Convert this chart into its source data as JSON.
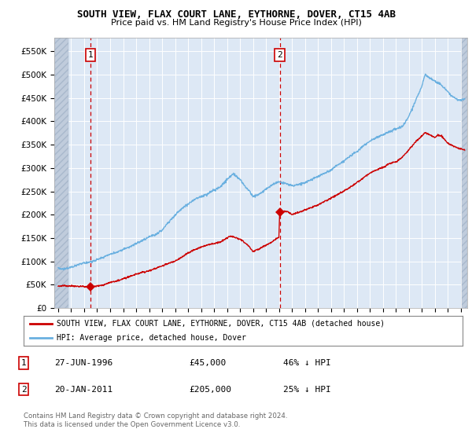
{
  "title": "SOUTH VIEW, FLAX COURT LANE, EYTHORNE, DOVER, CT15 4AB",
  "subtitle": "Price paid vs. HM Land Registry's House Price Index (HPI)",
  "ylim": [
    0,
    580000
  ],
  "yticks": [
    0,
    50000,
    100000,
    150000,
    200000,
    250000,
    300000,
    350000,
    400000,
    450000,
    500000,
    550000
  ],
  "ytick_labels": [
    "£0",
    "£50K",
    "£100K",
    "£150K",
    "£200K",
    "£250K",
    "£300K",
    "£350K",
    "£400K",
    "£450K",
    "£500K",
    "£550K"
  ],
  "xlim_start": 1993.7,
  "xlim_end": 2025.5,
  "sale1_date": 1996.49,
  "sale1_price": 45000,
  "sale2_date": 2011.055,
  "sale2_price": 205000,
  "property_color": "#cc0000",
  "hpi_color": "#6ab0e0",
  "legend_property": "SOUTH VIEW, FLAX COURT LANE, EYTHORNE, DOVER, CT15 4AB (detached house)",
  "legend_hpi": "HPI: Average price, detached house, Dover",
  "note1_date": "27-JUN-1996",
  "note1_price": "£45,000",
  "note1_hpi": "46% ↓ HPI",
  "note2_date": "20-JAN-2011",
  "note2_price": "£205,000",
  "note2_hpi": "25% ↓ HPI",
  "footnote": "Contains HM Land Registry data © Crown copyright and database right 2024.\nThis data is licensed under the Open Government Licence v3.0.",
  "bg_color": "#dde8f5",
  "hatch_color": "#c0ccdc"
}
